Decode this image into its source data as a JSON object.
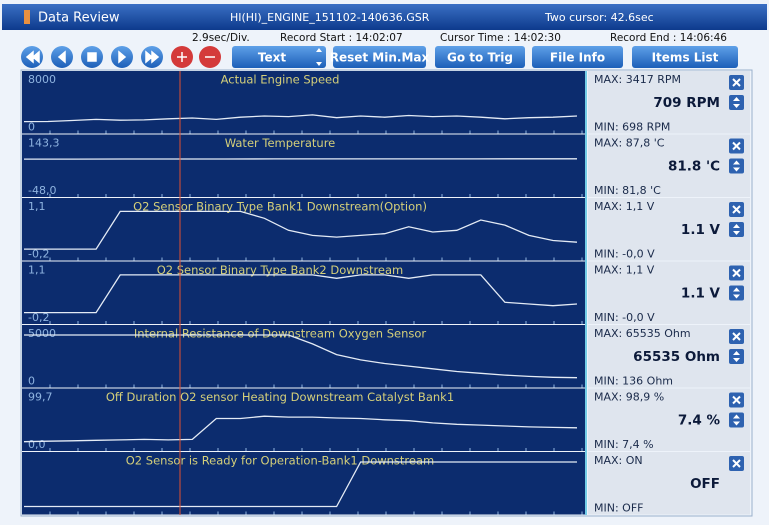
{
  "title_bar": {
    "app": "Data Review",
    "file": "HI(HI)_ENGINE_151102-140636.GSR",
    "cursor": "Two cursor: 42.6sec"
  },
  "info": {
    "division": "2.9sec/Div.",
    "record_start": "Record Start : 14:02:07",
    "cursor_time": "Cursor Time : 14:02:30",
    "record_end": "Record End : 14:06:46"
  },
  "toolbar": {
    "mode": "Text",
    "buttons": [
      "Reset Min.Max",
      "Go to Trig",
      "File Info",
      "Items List"
    ]
  },
  "panels": [
    {
      "name": "Actual Engine Speed",
      "ylim": [
        0,
        8000
      ],
      "max": "MAX:  3417 RPM",
      "current": "709 RPM",
      "min": "MIN:  698 RPM",
      "values": [
        700,
        720,
        900,
        1100,
        950,
        1000,
        1200,
        1350,
        1100,
        1500,
        1700,
        1600,
        1900,
        1400,
        1700,
        1500,
        1800,
        1600,
        1700,
        1500,
        1200,
        1400,
        1500,
        1700
      ]
    },
    {
      "name": "Water Temperature",
      "ylim": [
        {
          "value": -48,
          "label": "-48,0"
        },
        {
          "value": 143.3,
          "label": "143,3"
        }
      ],
      "max": "MAX:  87,8 'C",
      "current": "81.8 'C",
      "min": "MIN:  81,8 'C",
      "values": [
        80.5,
        80.6,
        80.8,
        81,
        81.1,
        81.2,
        81.3,
        81.4,
        81.5,
        81.6,
        81.7,
        81.8
      ]
    },
    {
      "name": "O2 Sensor Binary Type Bank1 Downstream(Option)",
      "ylim": [
        {
          "value": -0.2,
          "label": "-0,2"
        },
        {
          "value": 1.1,
          "label": "1,1"
        }
      ],
      "max": "MAX:  1,1 V",
      "current": "1.1 V",
      "min": "MIN:  -0,0 V",
      "values": [
        -0.1,
        -0.1,
        -0.1,
        -0.1,
        1.0,
        1.0,
        1.0,
        1.0,
        1.0,
        1.0,
        0.8,
        0.45,
        0.3,
        0.25,
        0.3,
        0.35,
        0.55,
        0.4,
        0.45,
        0.75,
        0.6,
        0.3,
        0.15,
        0.1
      ]
    },
    {
      "name": "O2 Sensor Binary Type Bank2 Downstream",
      "ylim": [
        {
          "value": -0.2,
          "label": "-0,2"
        },
        {
          "value": 1.1,
          "label": "1,1"
        }
      ],
      "max": "MAX:  1,1 V",
      "current": "1.1 V",
      "min": "MIN:  -0,0 V",
      "values": [
        -0.1,
        -0.1,
        -0.1,
        -0.1,
        1.0,
        1.0,
        1.0,
        1.0,
        1.0,
        1.0,
        1.0,
        1.0,
        1.0,
        0.9,
        1.0,
        1.0,
        0.9,
        1.0,
        1.0,
        1.0,
        0.2,
        0.15,
        0.1,
        0.15
      ]
    },
    {
      "name": "Internal Resistance of Downstream Oxygen Sensor",
      "ylim": [
        0,
        5000
      ],
      "max": "MAX: 65535 Ohm",
      "current": "65535 Ohm",
      "min": "MIN:  136 Ohm",
      "values": [
        5000,
        5000,
        5000,
        5000,
        5000,
        5000,
        5000,
        5000,
        5000,
        5000,
        5000,
        5000,
        4000,
        2800,
        2200,
        1800,
        1500,
        1200,
        900,
        700,
        500,
        350,
        250,
        200
      ]
    },
    {
      "name": "Off Duration O2 sensor Heating Downstream Catalyst Bank1",
      "ylim": [
        {
          "value": 0,
          "label": "0,0"
        },
        {
          "value": 99.7,
          "label": "99,7"
        }
      ],
      "max": "MAX:  98,9 %",
      "current": "7.4 %",
      "min": "MIN:  7,4 %",
      "values": [
        3,
        4,
        5,
        6,
        7,
        8,
        7,
        8,
        55,
        55,
        60,
        58,
        58,
        56,
        55,
        52,
        50,
        45,
        42,
        40,
        38,
        36,
        35,
        34
      ]
    },
    {
      "name": "O2 Sensor is Ready for Operation-Bank1 Downstream",
      "ylim": [
        0,
        1
      ],
      "max": "MAX: ON",
      "current": "OFF",
      "min": "MIN: OFF",
      "values": [
        0,
        0,
        0,
        0,
        0,
        0,
        0,
        0,
        0,
        0,
        0,
        0,
        0,
        0,
        1,
        1,
        1,
        1,
        1,
        1,
        1,
        1,
        1,
        1
      ]
    }
  ]
}
